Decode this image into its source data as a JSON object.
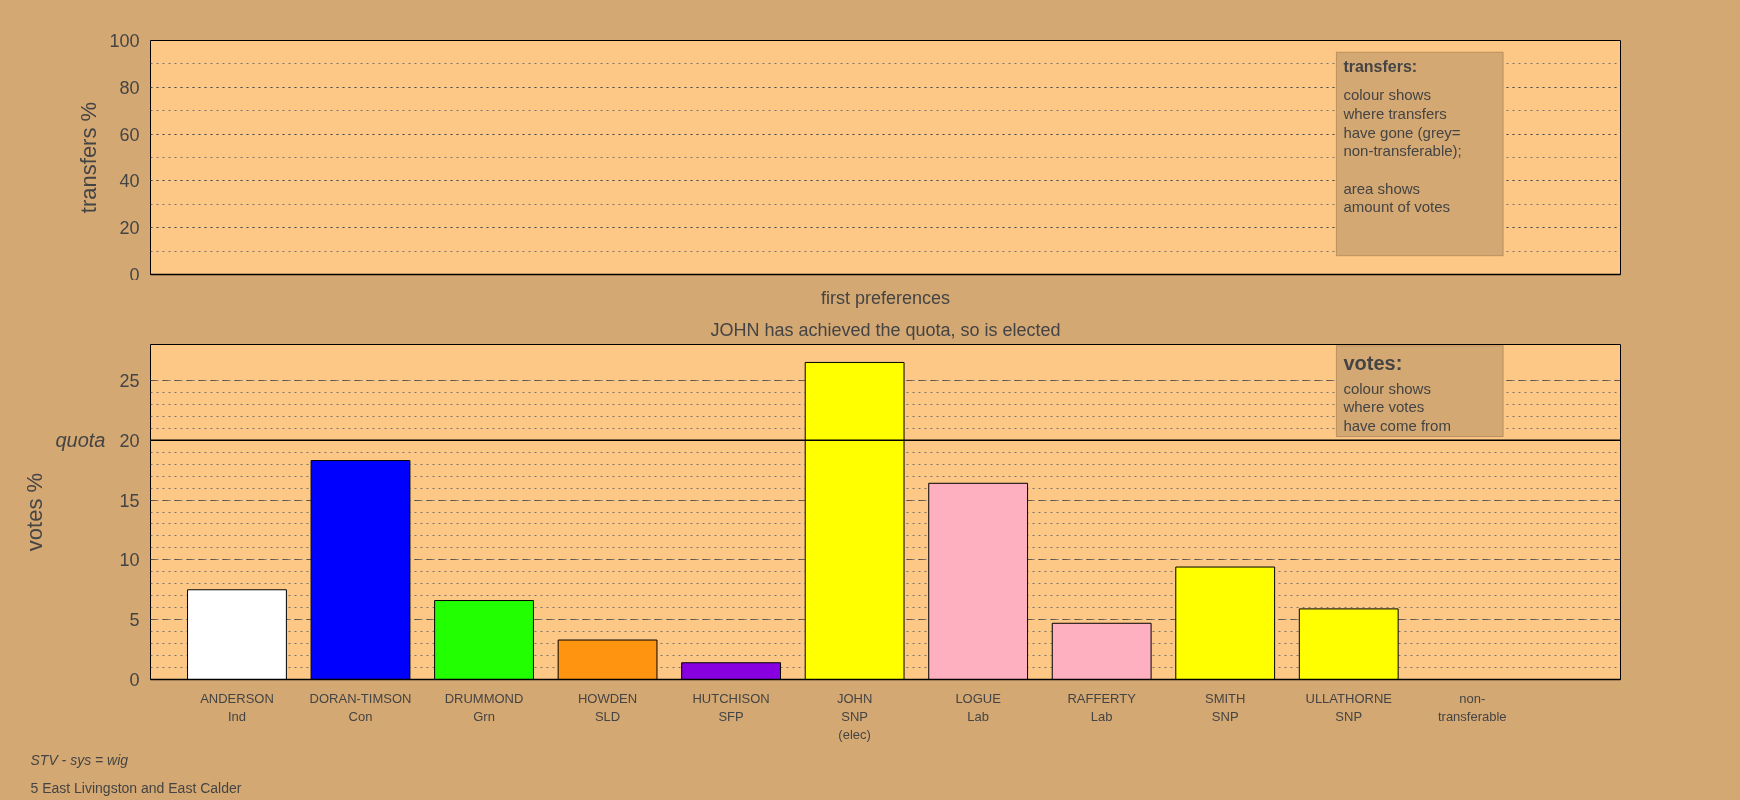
{
  "chart_data": [
    {
      "type": "bar",
      "ylabel": "transfers %",
      "categories": [
        null,
        null,
        null,
        null,
        null,
        null,
        null,
        null,
        null,
        null,
        null
      ],
      "values": [
        null,
        null,
        null,
        null,
        null,
        null,
        null,
        null,
        null,
        null,
        null
      ],
      "ylim": [
        0,
        100
      ],
      "yticks": [
        0,
        20,
        40,
        60,
        80,
        100
      ],
      "grid": "y",
      "tick_labels": "y",
      "annotations": [
        "transfers:",
        "colour shows\nwhere transfers\nhave gone (grey=\nnon-transferable);\n\narea shows\namount of votes"
      ]
    },
    {
      "type": "bar",
      "title": "first preferences",
      "subtitle": "JOHN has achieved the quota, so is elected",
      "ylabel": "votes %",
      "categories": [
        "ANDERSON\nInd",
        "DORAN-TIMSON\nCon",
        "DRUMMOND\nGrn",
        "HOWDEN\nSLD",
        "HUTCHISON\nSFP",
        "JOHN\nSNP\n(elec)",
        "LOGUE\nLab",
        "RAFFERTY\nLab",
        "SMITH\nSNP",
        "ULLATHORNE\nSNP",
        "non-\ntransferable"
      ],
      "values": [
        7.5,
        18.3,
        6.6,
        3.3,
        1.4,
        26.5,
        16.4,
        4.7,
        9.4,
        5.9,
        null
      ],
      "colors": [
        "#ffffff",
        "#0000ff",
        "#22ff00",
        "#ff9410",
        "#8800e0",
        "#ffff00",
        "#ffb0c0",
        "#ffb0c0",
        "#ffff00",
        "#ffff00",
        "#999999"
      ],
      "ylim": [
        0,
        28
      ],
      "yticks": [
        0,
        5,
        10,
        15,
        20,
        25
      ],
      "grid": "y",
      "ref_lines": [
        {
          "axis": "y",
          "value": 20,
          "label": "quota",
          "color": "#000000",
          "line_style": "solid"
        }
      ],
      "annotations": [
        "votes:",
        "colour shows\nwhere votes\nhave come from",
        "5 East Livingston and East Calder",
        "STV - sys = wig"
      ]
    }
  ]
}
